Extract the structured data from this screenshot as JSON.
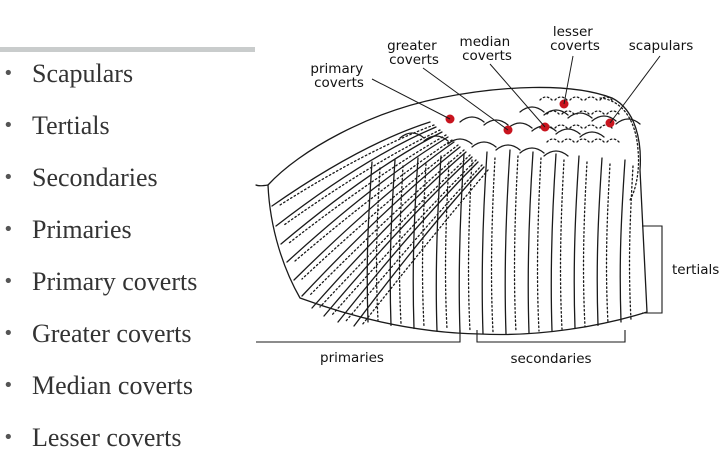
{
  "bullet_list": [
    "Scapulars",
    "Tertials",
    "Secondaries",
    "Primaries",
    "Primary coverts",
    "Greater coverts",
    "Median coverts",
    "Lesser coverts"
  ],
  "diagram": {
    "labels": {
      "primary_coverts": [
        "primary",
        "coverts"
      ],
      "greater_coverts": [
        "greater",
        "coverts"
      ],
      "median_coverts": [
        "median",
        "coverts"
      ],
      "lesser_coverts": [
        "lesser",
        "coverts"
      ],
      "scapulars": "scapulars",
      "tertials": "tertials",
      "primaries": "primaries",
      "secondaries": "secondaries"
    },
    "marker_color": "#c8141e",
    "ink_color": "#1a1a1a"
  }
}
